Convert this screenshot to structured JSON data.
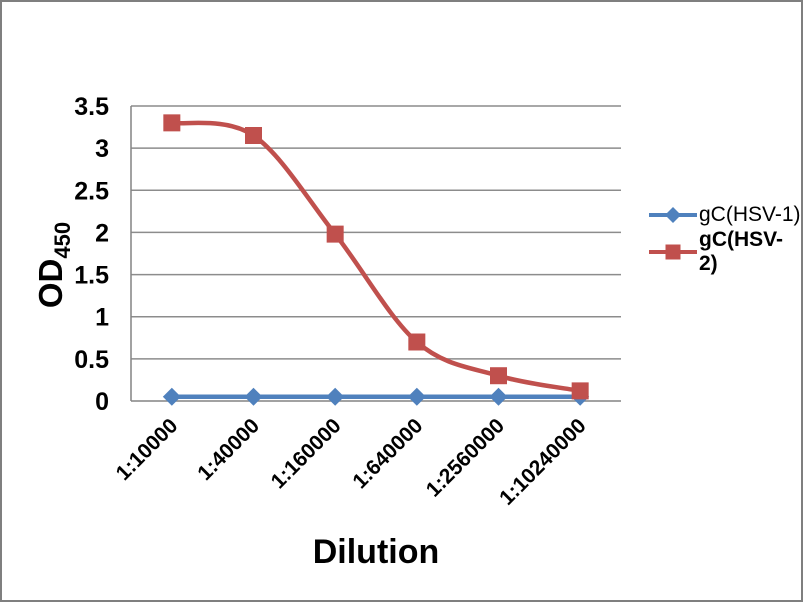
{
  "chart_data": {
    "type": "line",
    "categories": [
      "1:10000",
      "1:40000",
      "1:160000",
      "1:640000",
      "1:2560000",
      "1:10240000"
    ],
    "series": [
      {
        "name": "gC(HSV-1)",
        "color": "#4F81BD",
        "marker": "diamond",
        "smooth": true,
        "values": [
          0.05,
          0.05,
          0.05,
          0.05,
          0.05,
          0.05
        ]
      },
      {
        "name": "gC(HSV-2)",
        "color": "#C0504D",
        "marker": "square",
        "smooth": true,
        "values": [
          3.3,
          3.15,
          1.98,
          0.7,
          0.3,
          0.12
        ]
      }
    ],
    "xlabel": "Dilution",
    "ylabel": "OD",
    "ylabel_subscript": "450",
    "ylim": [
      0,
      3.5
    ],
    "ytick_step": 0.5,
    "ytick_labels": [
      "0",
      "0.5",
      "1",
      "1.5",
      "2",
      "2.5",
      "3",
      "3.5"
    ],
    "grid": true,
    "legend_position": "right",
    "gridline_color": "#8c8c8c",
    "axis_color": "#848484",
    "text_color": "#000000"
  },
  "frame": {
    "border_color": "#7f7f7f"
  }
}
